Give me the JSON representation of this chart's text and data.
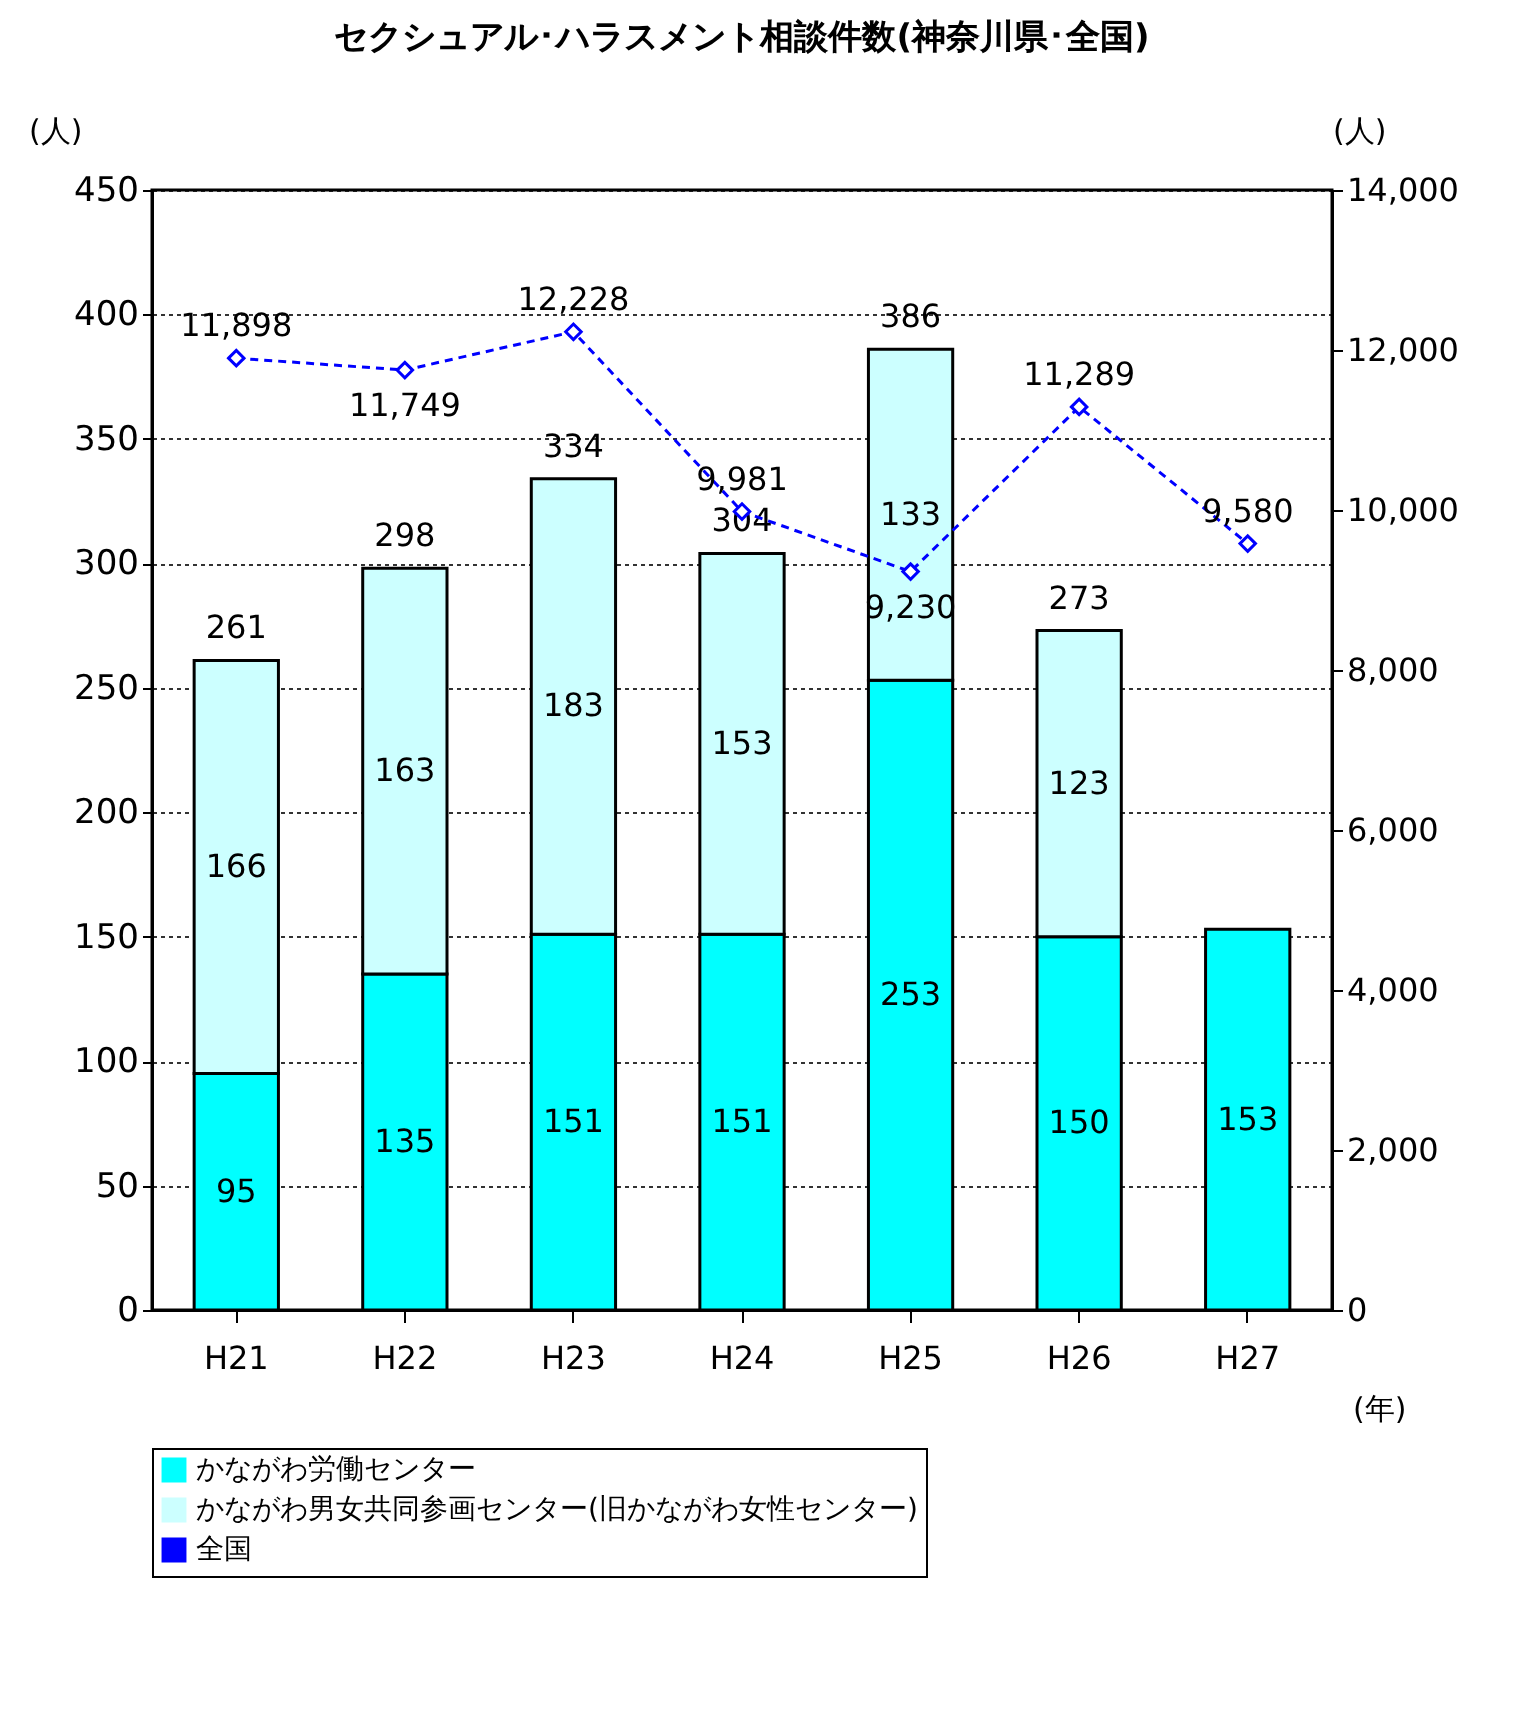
{
  "chart_data": {
    "type": "bar",
    "title": "セクシュアル･ハラスメント相談件数(神奈川県･全国)",
    "xlabel": "(年)",
    "ylabel": "(人)",
    "y2label": "(人)",
    "categories": [
      "H21",
      "H22",
      "H23",
      "H24",
      "H25",
      "H26",
      "H27"
    ],
    "stacked": true,
    "series": [
      {
        "name": "かながわ労働センター",
        "color": "#00ffff",
        "values": [
          95,
          135,
          151,
          151,
          253,
          150,
          153
        ]
      },
      {
        "name": "かながわ男女共同参画センター(旧かながわ女性センター)",
        "color": "#ccffff",
        "values": [
          166,
          163,
          183,
          153,
          133,
          123,
          null
        ]
      },
      {
        "name": "全国",
        "type": "line",
        "axis": "y2",
        "color": "#0000ff",
        "marker": "diamond",
        "line_style": "dashed",
        "values": [
          11898,
          11749,
          12228,
          9981,
          9230,
          11289,
          9580
        ],
        "value_labels": [
          "11,898",
          "11,749",
          "12,228",
          "9,981",
          "9,230",
          "11,289",
          "9,580"
        ]
      }
    ],
    "totals": [
      "261",
      "298",
      "334",
      "304",
      "386",
      "273",
      null
    ],
    "data_labels": true,
    "ylim": [
      0,
      450
    ],
    "yticks": [
      0,
      50,
      100,
      150,
      200,
      250,
      300,
      350,
      400,
      450
    ],
    "y2lim": [
      0,
      14000
    ],
    "y2ticks": [
      {
        "value": 0,
        "label": "0"
      },
      {
        "value": 2000,
        "label": "2,000"
      },
      {
        "value": 4000,
        "label": "4,000"
      },
      {
        "value": 6000,
        "label": "6,000"
      },
      {
        "value": 8000,
        "label": "8,000"
      },
      {
        "value": 10000,
        "label": "10,000"
      },
      {
        "value": 12000,
        "label": "12,000"
      },
      {
        "value": 14000,
        "label": "14,000"
      }
    ],
    "grid": "y",
    "legend": "bottom"
  }
}
